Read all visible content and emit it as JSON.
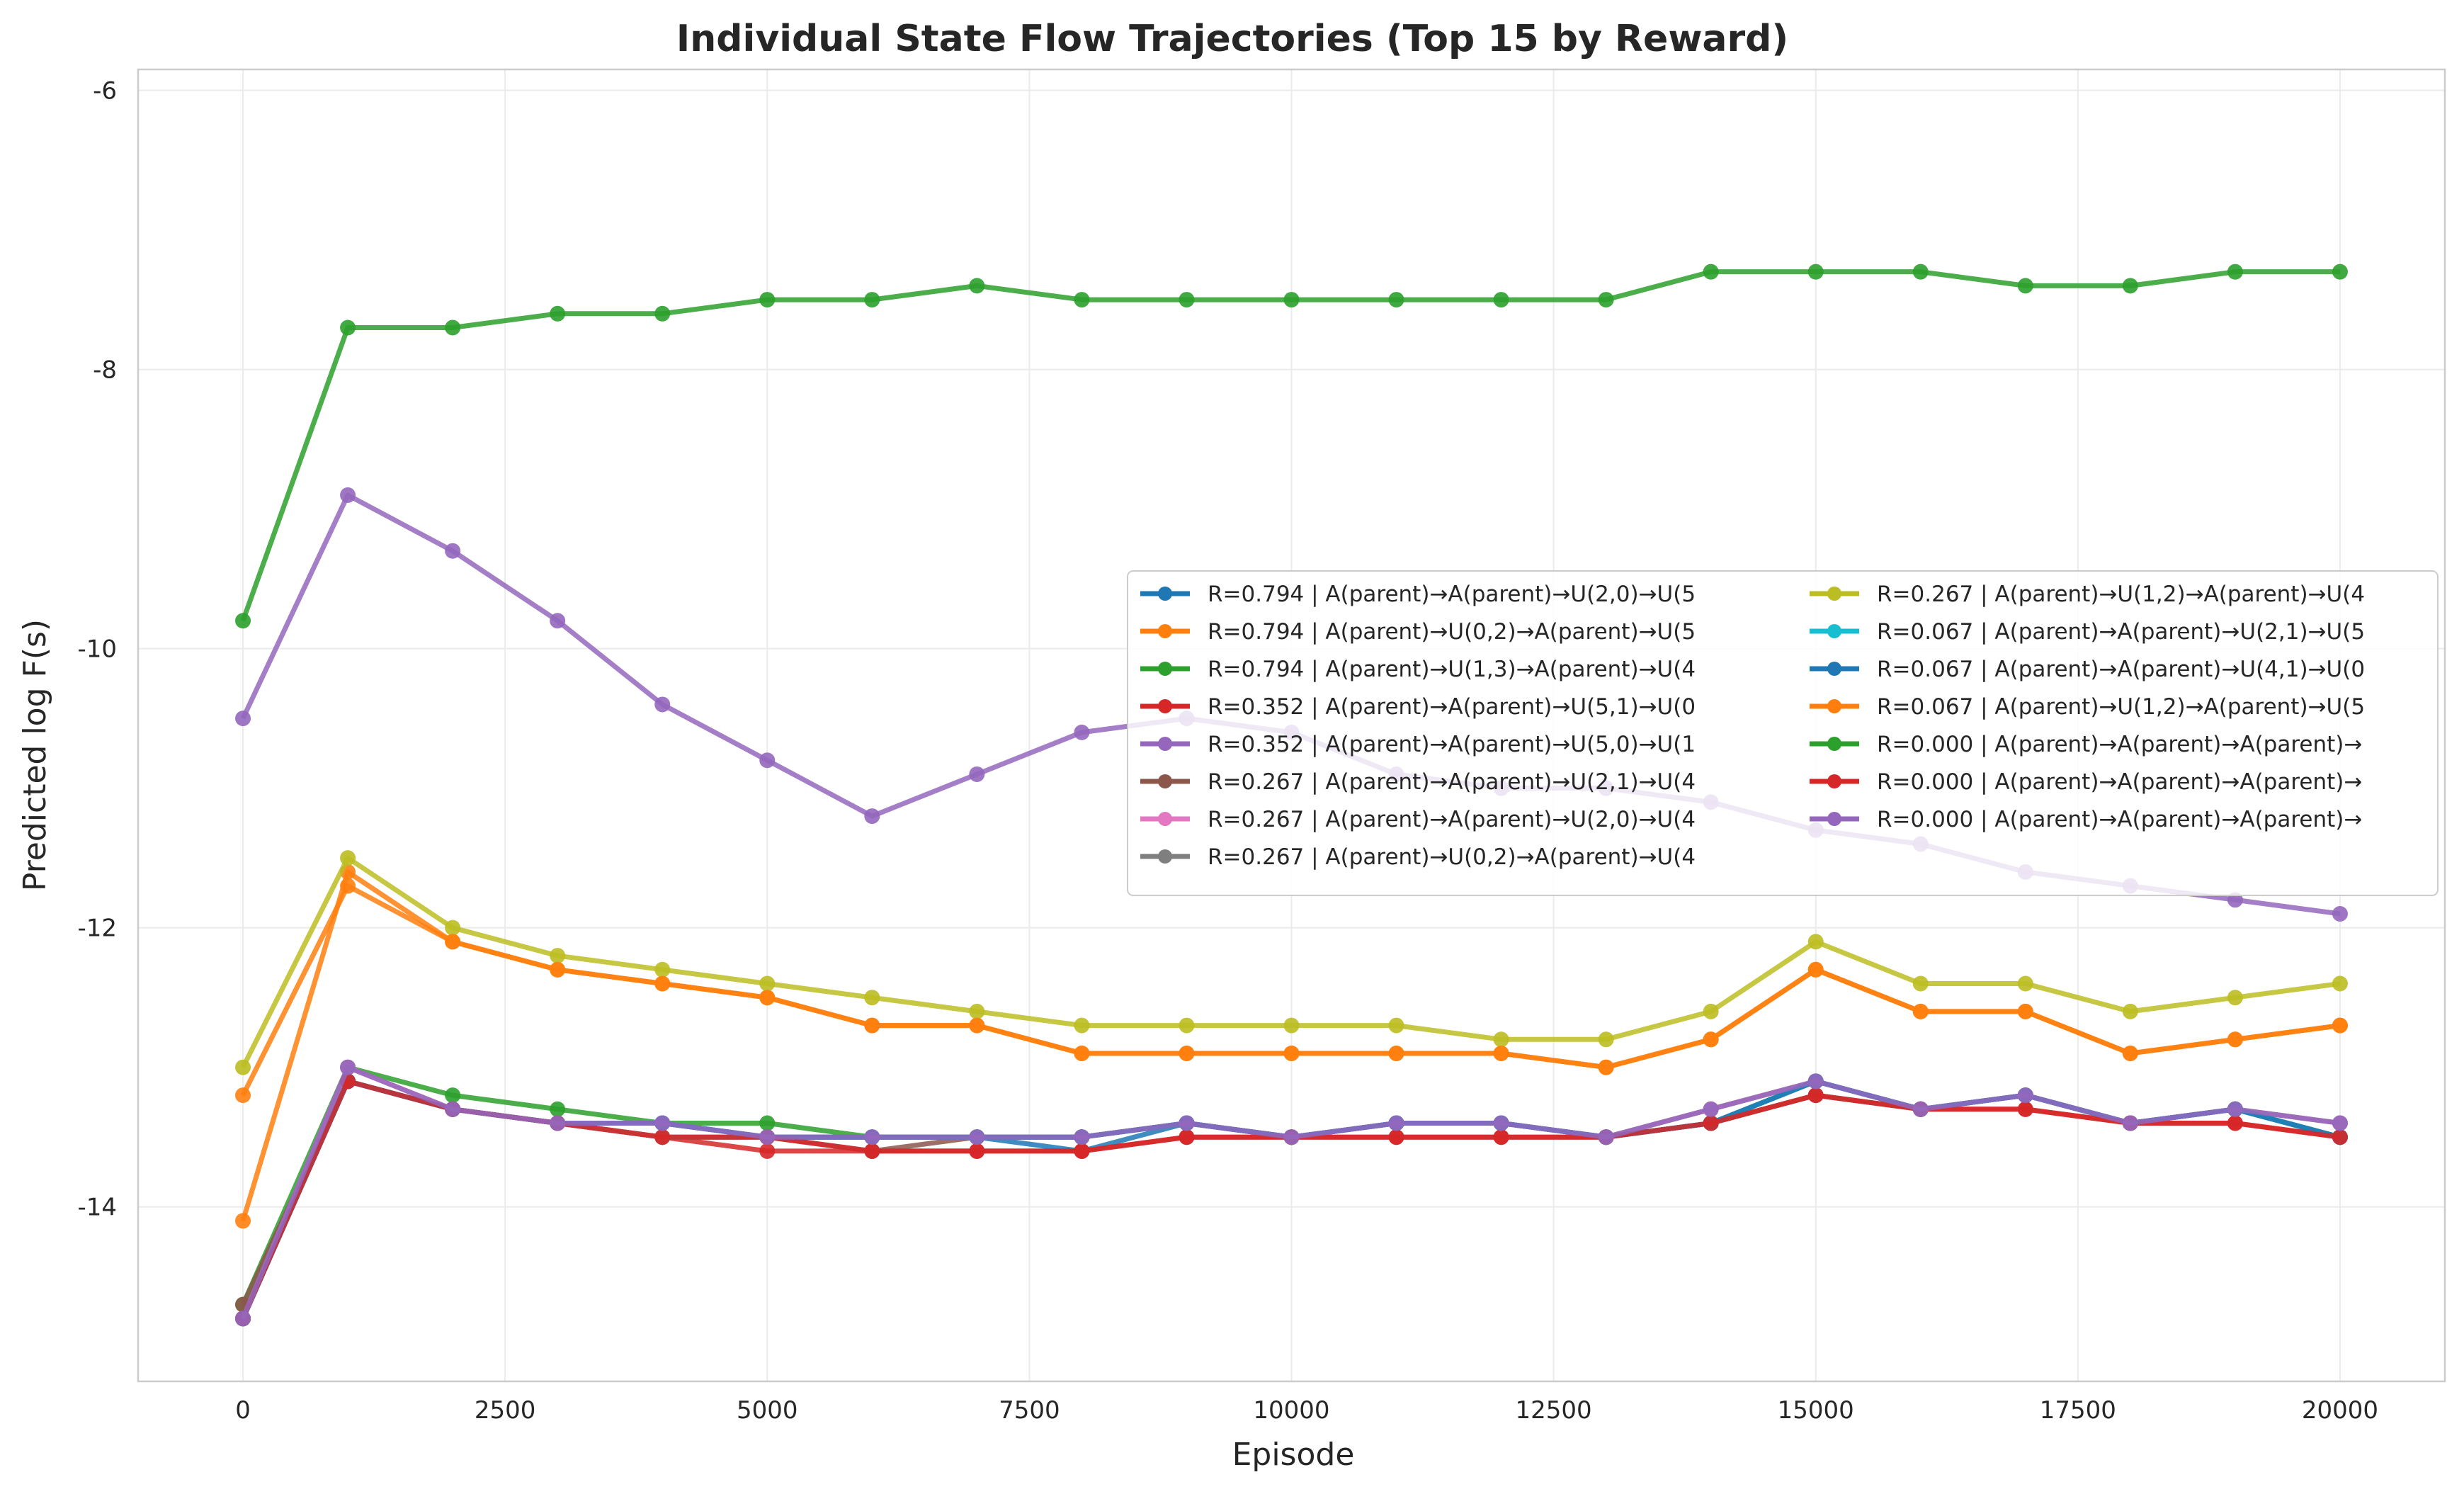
{
  "chart_data": {
    "type": "line",
    "title": "Individual State Flow Trajectories (Top 15 by Reward)",
    "xlabel": "Episode",
    "ylabel": "Predicted log F(s)",
    "xlim": [
      -1000,
      21000
    ],
    "ylim": [
      -15.25,
      -5.85
    ],
    "x_ticks": [
      "0",
      "2500",
      "5000",
      "7500",
      "10000",
      "12500",
      "15000",
      "17500",
      "20000"
    ],
    "y_ticks": [
      "-6",
      "-8",
      "-10",
      "-12",
      "-14"
    ],
    "grid": true,
    "markers": true,
    "legend_position": "center-right",
    "legend_columns": 2,
    "x": [
      0,
      1000,
      2000,
      3000,
      4000,
      5000,
      6000,
      7000,
      8000,
      9000,
      10000,
      11000,
      12000,
      13000,
      14000,
      15000,
      16000,
      17000,
      18000,
      19000,
      20000
    ],
    "series": [
      {
        "name": "R=0.794 | A(parent)→A(parent)→U(2,0)→U(5",
        "color": "#1f77b4",
        "values": [
          -14.8,
          -13.1,
          -13.3,
          -13.4,
          -13.4,
          -13.5,
          -13.5,
          -13.5,
          -13.6,
          -13.4,
          -13.5,
          -13.4,
          -13.4,
          -13.5,
          -13.4,
          -13.1,
          -13.3,
          -13.2,
          -13.4,
          -13.3,
          -13.5
        ]
      },
      {
        "name": "R=0.794 | A(parent)→U(0,2)→A(parent)→U(5",
        "color": "#ff7f0e",
        "values": [
          -14.1,
          -11.6,
          -12.1,
          -12.3,
          -12.4,
          -12.5,
          -12.7,
          -12.7,
          -12.9,
          -12.9,
          -12.9,
          -12.9,
          -12.9,
          -13.0,
          -12.8,
          -12.3,
          -12.6,
          -12.6,
          -12.9,
          -12.8,
          -12.7
        ]
      },
      {
        "name": "R=0.794 | A(parent)→U(1,3)→A(parent)→U(4",
        "color": "#2ca02c",
        "values": [
          -14.7,
          -13.0,
          -13.2,
          -13.3,
          -13.4,
          -13.4,
          -13.5,
          -13.5,
          -13.5,
          -13.4,
          -13.5,
          -13.4,
          -13.4,
          -13.5,
          -13.3,
          -13.1,
          -13.3,
          -13.2,
          -13.4,
          -13.3,
          -13.4
        ]
      },
      {
        "name": "R=0.352 | A(parent)→A(parent)→U(5,1)→U(0",
        "color": "#d62728",
        "values": [
          -14.8,
          -13.1,
          -13.3,
          -13.4,
          -13.5,
          -13.6,
          -13.6,
          -13.6,
          -13.6,
          -13.5,
          -13.5,
          -13.5,
          -13.5,
          -13.5,
          -13.4,
          -13.2,
          -13.3,
          -13.3,
          -13.4,
          -13.4,
          -13.5
        ]
      },
      {
        "name": "R=0.352 | A(parent)→A(parent)→U(5,0)→U(1",
        "color": "#9467bd",
        "values": [
          -10.5,
          -8.9,
          -9.3,
          -9.8,
          -10.4,
          -10.8,
          -11.2,
          -10.9,
          -10.6,
          -10.5,
          -10.6,
          -10.9,
          -11.0,
          -11.0,
          -11.1,
          -11.3,
          -11.4,
          -11.6,
          -11.7,
          -11.8,
          -11.9
        ]
      },
      {
        "name": "R=0.267 | A(parent)→A(parent)→U(2,1)→U(4",
        "color": "#8c564b",
        "values": [
          -14.7,
          -13.1,
          -13.3,
          -13.4,
          -13.5,
          -13.5,
          -13.6,
          -13.5,
          -13.5,
          -13.4,
          -13.5,
          -13.4,
          -13.4,
          -13.5,
          -13.4,
          -13.2,
          -13.3,
          -13.2,
          -13.4,
          -13.3,
          -13.5
        ]
      },
      {
        "name": "R=0.267 | A(parent)→A(parent)→U(2,0)→U(4",
        "color": "#e377c2",
        "values": [
          -14.8,
          -13.0,
          -13.3,
          -13.4,
          -13.4,
          -13.5,
          -13.5,
          -13.5,
          -13.5,
          -13.4,
          -13.5,
          -13.4,
          -13.4,
          -13.5,
          -13.3,
          -13.1,
          -13.3,
          -13.2,
          -13.4,
          -13.3,
          -13.4
        ]
      },
      {
        "name": "R=0.267 | A(parent)→U(0,2)→A(parent)→U(4",
        "color": "#7f7f7f",
        "values": [
          -14.8,
          -13.1,
          -13.3,
          -13.4,
          -13.5,
          -13.5,
          -13.5,
          -13.5,
          -13.5,
          -13.4,
          -13.5,
          -13.4,
          -13.4,
          -13.5,
          -13.4,
          -13.1,
          -13.3,
          -13.2,
          -13.4,
          -13.3,
          -13.5
        ]
      },
      {
        "name": "R=0.267 | A(parent)→U(1,2)→A(parent)→U(4",
        "color": "#bcbd22",
        "values": [
          -13.0,
          -11.5,
          -12.0,
          -12.2,
          -12.3,
          -12.4,
          -12.5,
          -12.6,
          -12.7,
          -12.7,
          -12.7,
          -12.7,
          -12.8,
          -12.8,
          -12.6,
          -12.1,
          -12.4,
          -12.4,
          -12.6,
          -12.5,
          -12.4
        ]
      },
      {
        "name": "R=0.067 | A(parent)→A(parent)→U(2,1)→U(5",
        "color": "#17becf",
        "values": [
          -14.8,
          -13.1,
          -13.3,
          -13.4,
          -13.4,
          -13.5,
          -13.5,
          -13.5,
          -13.5,
          -13.4,
          -13.5,
          -13.4,
          -13.4,
          -13.5,
          -13.4,
          -13.1,
          -13.3,
          -13.2,
          -13.4,
          -13.3,
          -13.5
        ]
      },
      {
        "name": "R=0.067 | A(parent)→A(parent)→U(4,1)→U(0",
        "color": "#1f77b4",
        "values": [
          -14.8,
          -13.1,
          -13.3,
          -13.4,
          -13.4,
          -13.5,
          -13.5,
          -13.5,
          -13.5,
          -13.4,
          -13.5,
          -13.4,
          -13.4,
          -13.5,
          -13.4,
          -13.1,
          -13.3,
          -13.2,
          -13.4,
          -13.3,
          -13.5
        ]
      },
      {
        "name": "R=0.067 | A(parent)→U(1,2)→A(parent)→U(5",
        "color": "#ff7f0e",
        "values": [
          -13.2,
          -11.7,
          -12.1,
          -12.3,
          -12.4,
          -12.5,
          -12.7,
          -12.7,
          -12.9,
          -12.9,
          -12.9,
          -12.9,
          -12.9,
          -13.0,
          -12.8,
          -12.3,
          -12.6,
          -12.6,
          -12.9,
          -12.8,
          -12.7
        ]
      },
      {
        "name": "R=0.000 | A(parent)→A(parent)→A(parent)→",
        "color": "#2ca02c",
        "values": [
          -9.8,
          -7.7,
          -7.7,
          -7.6,
          -7.6,
          -7.5,
          -7.5,
          -7.4,
          -7.5,
          -7.5,
          -7.5,
          -7.5,
          -7.5,
          -7.5,
          -7.3,
          -7.3,
          -7.3,
          -7.4,
          -7.4,
          -7.3,
          -7.3
        ]
      },
      {
        "name": "R=0.000 | A(parent)→A(parent)→A(parent)→",
        "color": "#d62728",
        "values": [
          -14.8,
          -13.1,
          -13.3,
          -13.4,
          -13.5,
          -13.5,
          -13.6,
          -13.6,
          -13.6,
          -13.5,
          -13.5,
          -13.5,
          -13.5,
          -13.5,
          -13.4,
          -13.2,
          -13.3,
          -13.3,
          -13.4,
          -13.4,
          -13.5
        ]
      },
      {
        "name": "R=0.000 | A(parent)→A(parent)→A(parent)→",
        "color": "#9467bd",
        "values": [
          -14.8,
          -13.0,
          -13.3,
          -13.4,
          -13.4,
          -13.5,
          -13.5,
          -13.5,
          -13.5,
          -13.4,
          -13.5,
          -13.4,
          -13.4,
          -13.5,
          -13.3,
          -13.1,
          -13.3,
          -13.2,
          -13.4,
          -13.3,
          -13.4
        ]
      }
    ]
  }
}
